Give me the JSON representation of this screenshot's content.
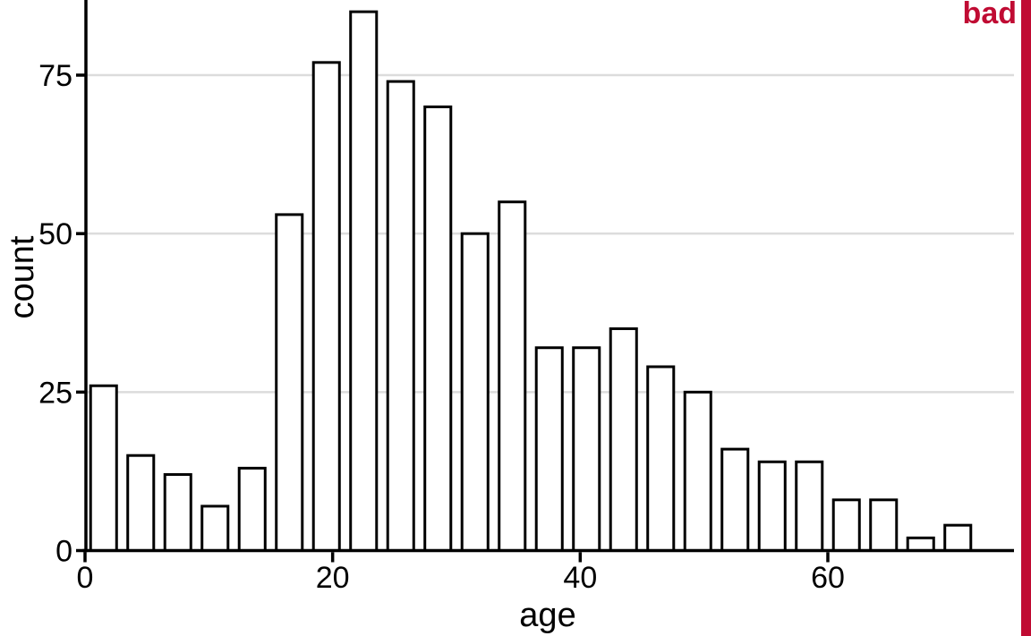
{
  "stamp": {
    "label": "bad"
  },
  "chart_data": {
    "type": "bar",
    "subtype": "histogram",
    "title": "",
    "xlabel": "age",
    "ylabel": "count",
    "bin_start": 0,
    "bin_width": 3,
    "bar_relative_width": 0.7,
    "categories": [
      "0-3",
      "3-6",
      "6-9",
      "9-12",
      "12-15",
      "15-18",
      "18-21",
      "21-24",
      "24-27",
      "27-30",
      "30-33",
      "33-36",
      "36-39",
      "39-42",
      "42-45",
      "45-48",
      "48-51",
      "51-54",
      "54-57",
      "57-60",
      "60-63",
      "63-66",
      "66-69",
      "69-72"
    ],
    "values": [
      26,
      15,
      12,
      7,
      13,
      53,
      77,
      85,
      74,
      70,
      50,
      55,
      32,
      32,
      35,
      29,
      25,
      16,
      14,
      14,
      8,
      8,
      2,
      4
    ],
    "x_ticks": [
      0,
      20,
      40,
      60
    ],
    "y_ticks": [
      0,
      25,
      50,
      75
    ],
    "xlim": [
      0,
      75
    ],
    "ylim": [
      0,
      87
    ],
    "grid": "horizontal-at-y-ticks",
    "legend": "none",
    "colors": {
      "background": "#ffffff",
      "bar_fill": "#ffffff",
      "bar_stroke": "#000000",
      "axis": "#000000",
      "grid": "#dcdcdc",
      "text": "#000000",
      "accent_red": "#c00b33"
    }
  }
}
